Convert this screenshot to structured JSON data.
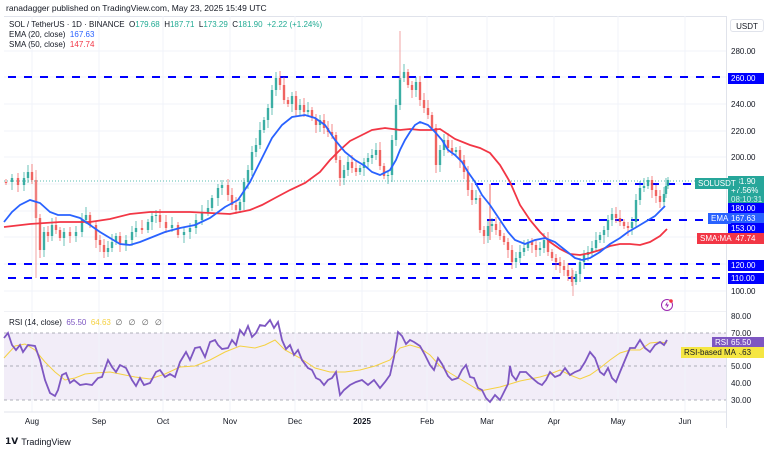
{
  "header": {
    "published": "ranadagger published on TradingView.com, May 23, 2025 15:49 UTC"
  },
  "legend": {
    "symbol": "SOL / TetherUS · 1D · BINANCE",
    "o_label": "O",
    "o": "179.68",
    "h_label": "H",
    "h": "187.71",
    "l_label": "L",
    "l": "173.29",
    "c_label": "C",
    "c": "181.90",
    "change": "+2.22 (+1.24%)",
    "ema_label": "EMA (20, close)",
    "ema_value": "167.63",
    "sma_label": "SMA (50, close)",
    "sma_value": "147.74",
    "rsi_label": "RSI (14, close)",
    "rsi_value": "65.50",
    "rsi_ma_value": "64.63",
    "rsi_nil": "∅ ∅ ∅ ∅"
  },
  "price_axis": {
    "currency": "USDT",
    "ticks": [
      "280.00",
      "240.00",
      "220.00",
      "200.00",
      "100.00"
    ],
    "tags": {
      "level_260": "260.00",
      "last_price": "181.90",
      "last_change": "+7.56%",
      "countdown": "08:10:31",
      "level_180": "180.00",
      "ema": "167.63",
      "level_153": "153.00",
      "sma": "147.74",
      "level_120": "120.00",
      "level_110": "110.00"
    },
    "left_tags": {
      "symbol": "SOLUSDT",
      "ema": "EMA",
      "sma": "SMA:MA"
    }
  },
  "rsi_axis": {
    "ticks": [
      "80.00",
      "70.00",
      "50.00",
      "40.00",
      "30.00"
    ],
    "tags": {
      "rsi_label": "RSI",
      "rsi": "65.50",
      "rsi_ma_label": "RSI-based MA",
      "rsi_ma": "64.63"
    }
  },
  "time_axis": {
    "labels": [
      "Aug",
      "Sep",
      "Oct",
      "Nov",
      "Dec",
      "2025",
      "Feb",
      "Mar",
      "Apr",
      "May",
      "Jun"
    ]
  },
  "footer": {
    "brand": "TradingView"
  },
  "colors": {
    "up": "#26a69a",
    "down": "#ef5350",
    "ema": "#2962ff",
    "sma": "#f23645",
    "level": "#0000ff",
    "rsi": "#7e57c2",
    "rsi_ma": "#f5d142",
    "rsi_band": "#ede7f6"
  },
  "chart_data": [
    {
      "type": "candlestick",
      "title": "SOL / TetherUS · 1D · BINANCE",
      "xlabel": "",
      "ylabel": "USDT",
      "ylim": [
        90,
        300
      ],
      "x_ticks": [
        "Aug",
        "Sep",
        "Oct",
        "Nov",
        "Dec",
        "2025",
        "Feb",
        "Mar",
        "Apr",
        "May",
        "Jun"
      ],
      "y_ticks": [
        100,
        200,
        220,
        240,
        280
      ],
      "last": {
        "open": 179.68,
        "high": 187.71,
        "low": 173.29,
        "close": 181.9,
        "change": 2.22,
        "change_pct": 1.24
      },
      "horizontal_levels": [
        260,
        180,
        153,
        120,
        110
      ],
      "series": [
        {
          "name": "SOL price (approx. close)",
          "x": [
            "Jul-20",
            "Aug-01",
            "Aug-05",
            "Aug-15",
            "Sep-01",
            "Sep-07",
            "Sep-15",
            "Oct-01",
            "Oct-10",
            "Oct-20",
            "Nov-01",
            "Nov-10",
            "Nov-22",
            "Dec-01",
            "Dec-10",
            "Dec-20",
            "Jan-01",
            "Jan-10",
            "Jan-19",
            "Jan-25",
            "Feb-01",
            "Feb-03",
            "Feb-15",
            "Feb-25",
            "Mar-03",
            "Mar-10",
            "Mar-20",
            "Apr-01",
            "Apr-07",
            "Apr-15",
            "Apr-25",
            "May-01",
            "May-10",
            "May-15",
            "May-20",
            "May-23"
          ],
          "values": [
            180,
            175,
            135,
            150,
            135,
            128,
            140,
            150,
            160,
            170,
            165,
            215,
            255,
            235,
            228,
            200,
            190,
            215,
            255,
            240,
            215,
            195,
            190,
            165,
            175,
            125,
            130,
            125,
            105,
            130,
            150,
            145,
            175,
            180,
            168,
            182
          ]
        },
        {
          "name": "EMA (20, close)",
          "values": [
            155,
            170,
            160,
            150,
            140,
            138,
            135,
            140,
            150,
            165,
            168,
            190,
            230,
            240,
            225,
            205,
            200,
            205,
            225,
            238,
            230,
            215,
            200,
            175,
            158,
            140,
            135,
            132,
            125,
            122,
            135,
            145,
            155,
            162,
            167,
            167.63
          ]
        },
        {
          "name": "SMA (50, close)",
          "values": [
            150,
            152,
            152,
            152,
            150,
            142,
            138,
            138,
            140,
            148,
            155,
            170,
            190,
            210,
            218,
            215,
            212,
            210,
            212,
            212,
            212,
            210,
            205,
            190,
            175,
            160,
            140,
            130,
            125,
            127,
            132,
            137,
            140,
            142,
            146,
            147.74
          ]
        }
      ]
    },
    {
      "type": "line",
      "title": "RSI (14, close)",
      "ylim": [
        25,
        82
      ],
      "y_ticks": [
        30,
        40,
        50,
        70,
        80
      ],
      "bands": [
        30,
        50,
        70
      ],
      "series": [
        {
          "name": "RSI",
          "last": 65.5,
          "values": [
            70,
            62,
            55,
            32,
            50,
            45,
            50,
            45,
            52,
            60,
            45,
            42,
            62,
            58,
            70,
            75,
            68,
            78,
            72,
            55,
            45,
            40,
            46,
            50,
            30,
            55,
            40,
            42,
            50,
            60,
            75,
            62,
            50,
            42,
            44,
            38,
            32,
            28,
            55,
            45,
            48,
            42,
            50,
            55,
            58,
            62,
            55,
            50,
            42,
            60,
            65,
            72,
            65,
            76,
            78,
            60,
            62,
            65
          ]
        },
        {
          "name": "RSI-based MA",
          "last": 64.63,
          "values": [
            58,
            60,
            55,
            48,
            45,
            46,
            48,
            50,
            50,
            52,
            55,
            58,
            60,
            62,
            65,
            67,
            70,
            68,
            62,
            56,
            50,
            46,
            44,
            42,
            40,
            42,
            44,
            46,
            48,
            50,
            52,
            55,
            55,
            52,
            50,
            46,
            42,
            40,
            42,
            44,
            46,
            48,
            48,
            50,
            52,
            54,
            54,
            54,
            52,
            52,
            55,
            58,
            60,
            62,
            63,
            64,
            64.63
          ]
        }
      ]
    }
  ]
}
